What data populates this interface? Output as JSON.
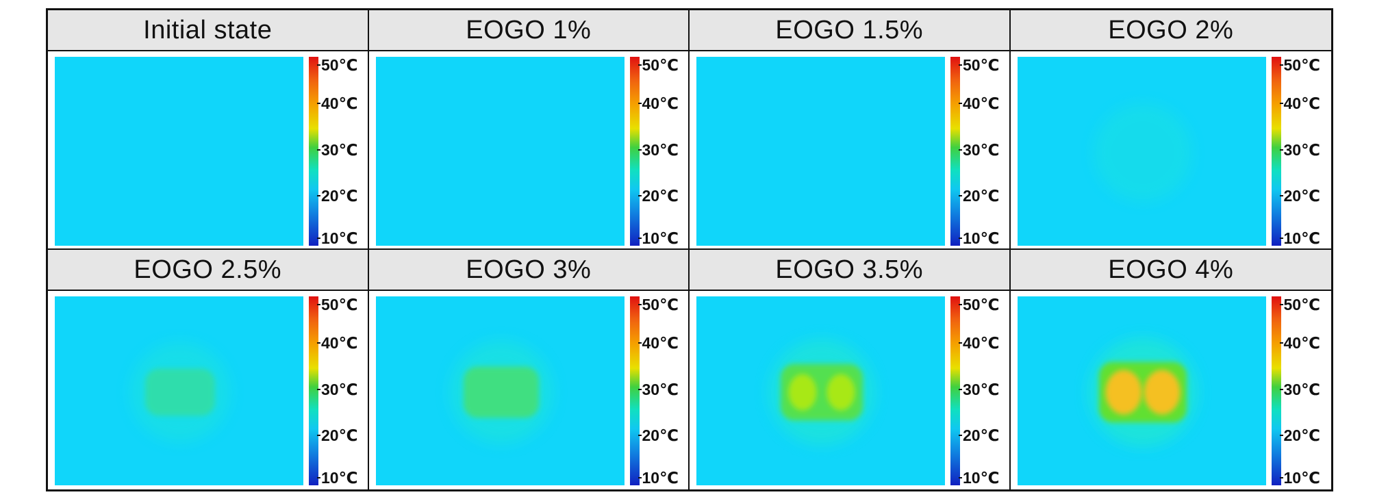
{
  "panels": [
    {
      "label": "Initial state",
      "heat": 0
    },
    {
      "label": "EOGO 1%",
      "heat": 0.02
    },
    {
      "label": "EOGO 1.5%",
      "heat": 0.05
    },
    {
      "label": "EOGO 2%",
      "heat": 0.15
    },
    {
      "label": "EOGO 2.5%",
      "heat": 0.3
    },
    {
      "label": "EOGO 3%",
      "heat": 0.5
    },
    {
      "label": "EOGO 3.5%",
      "heat": 0.75
    },
    {
      "label": "EOGO 4%",
      "heat": 0.95
    }
  ],
  "scale": {
    "t50": "50℃",
    "t40": "40℃",
    "t30": "30℃",
    "t20": "20℃",
    "t10": "10℃"
  },
  "colors": {
    "background": "#10d6fa",
    "hot": "#f5c020",
    "warm": "#60e030",
    "mild": "#20e8d0"
  }
}
